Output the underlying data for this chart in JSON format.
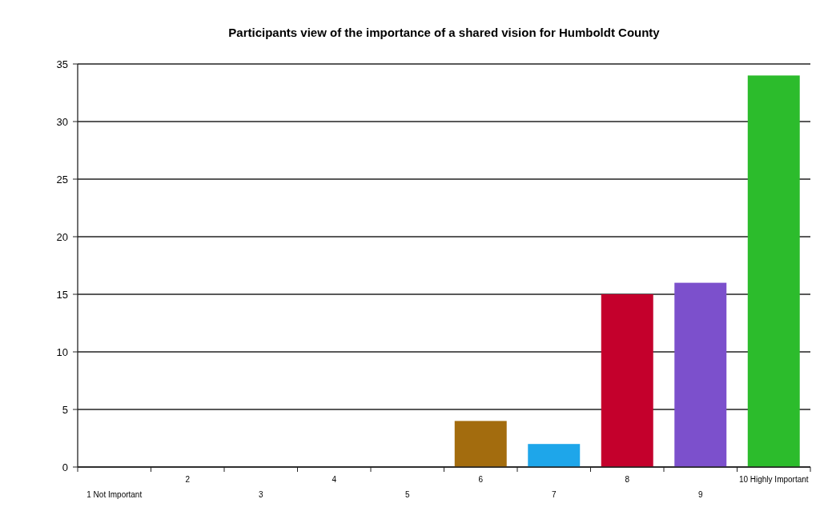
{
  "chart_data": {
    "type": "bar",
    "title": "Participants view of the importance of a shared vision for Humboldt County",
    "categories": [
      "1 Not Important",
      "2",
      "3",
      "4",
      "5",
      "6",
      "7",
      "8",
      "9",
      "10 Highly Important"
    ],
    "values": [
      0,
      0,
      0,
      0,
      0,
      4,
      2,
      15,
      16,
      34
    ],
    "colors": [
      "#808080",
      "#808080",
      "#808080",
      "#808080",
      "#808080",
      "#a36c0e",
      "#1ea6ea",
      "#c4002c",
      "#7c50cc",
      "#2cbc2c"
    ],
    "ylim": [
      0,
      35
    ],
    "yticks": [
      0,
      5,
      10,
      15,
      20,
      25,
      30,
      35
    ],
    "grid": "y"
  }
}
